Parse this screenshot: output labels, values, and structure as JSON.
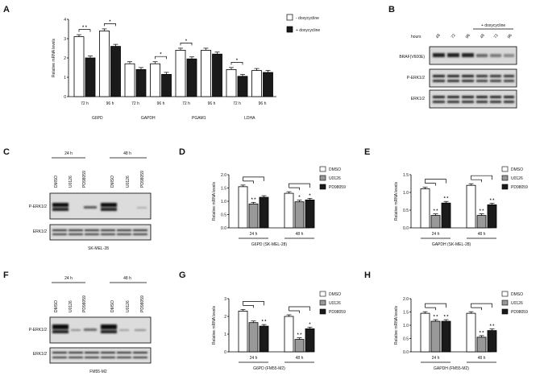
{
  "panels": {
    "A": "A",
    "B": "B",
    "C": "C",
    "D": "D",
    "E": "E",
    "F": "F",
    "G": "G",
    "H": "H"
  },
  "ylabel": "Relative mRNA levels",
  "legend_dox": {
    "minus": "- doxycycline",
    "plus": "+ doxycycline"
  },
  "legend_inh": {
    "dmso": "DMSO",
    "u0126": "U0126",
    "pd": "PD98059"
  },
  "colors": {
    "white": "#ffffff",
    "gray": "#999999",
    "black": "#1a1a1a"
  },
  "chart_data": [
    {
      "panel": "A",
      "type": "bar",
      "title": "",
      "ylabel": "Relative mRNA levels",
      "ylim": [
        0,
        4
      ],
      "yticks": [
        "0",
        "1",
        "2",
        "3",
        "4"
      ],
      "groups": [
        {
          "gene": "G6PD",
          "time": "72 h",
          "values": [
            3.1,
            2.0
          ],
          "sig": "* *"
        },
        {
          "gene": "G6PD",
          "time": "96 h",
          "values": [
            3.4,
            2.6
          ],
          "sig": "*"
        },
        {
          "gene": "GAPDH",
          "time": "72 h",
          "values": [
            1.7,
            1.4
          ],
          "sig": ""
        },
        {
          "gene": "GAPDH",
          "time": "96 h",
          "values": [
            1.7,
            1.15
          ],
          "sig": "*"
        },
        {
          "gene": "PGAM1",
          "time": "72 h",
          "values": [
            2.4,
            1.95
          ],
          "sig": "*"
        },
        {
          "gene": "PGAM1",
          "time": "96 h",
          "values": [
            2.4,
            2.2
          ],
          "sig": ""
        },
        {
          "gene": "LDHA",
          "time": "72 h",
          "values": [
            1.4,
            1.05
          ],
          "sig": "*"
        },
        {
          "gene": "LDHA",
          "time": "96 h",
          "values": [
            1.35,
            1.25
          ],
          "sig": ""
        }
      ],
      "series": [
        {
          "name": "- doxycycline"
        },
        {
          "name": "+ doxycycline"
        }
      ],
      "gene_labels": [
        "G6PD",
        "GAPDH",
        "PGAM1",
        "LDHA"
      ]
    },
    {
      "panel": "D",
      "type": "bar",
      "xlabel": "G6PD (SK-MEL-28)",
      "ylim": [
        0,
        2.0
      ],
      "yticks": [
        "0.0",
        "0.5",
        "1.0",
        "1.5",
        "2.0"
      ],
      "categories": [
        "24 h",
        "48 h"
      ],
      "series": [
        {
          "name": "DMSO",
          "values": [
            1.55,
            1.3
          ]
        },
        {
          "name": "U0126",
          "values": [
            0.9,
            0.98
          ]
        },
        {
          "name": "PD98059",
          "values": [
            1.15,
            1.05
          ]
        }
      ],
      "sig": [
        [
          "",
          "* *",
          ""
        ],
        [
          "",
          "*",
          "*"
        ]
      ]
    },
    {
      "panel": "E",
      "type": "bar",
      "xlabel": "GAPDH (SK-MEL-28)",
      "ylim": [
        0,
        1.5
      ],
      "yticks": [
        "0.0",
        "0.5",
        "1.0",
        "1.5"
      ],
      "categories": [
        "24 h",
        "48 h"
      ],
      "series": [
        {
          "name": "DMSO",
          "values": [
            1.1,
            1.2
          ]
        },
        {
          "name": "U0126",
          "values": [
            0.35,
            0.35
          ]
        },
        {
          "name": "PD98059",
          "values": [
            0.7,
            0.65
          ]
        }
      ],
      "sig": [
        [
          "",
          "* *",
          "* *"
        ],
        [
          "",
          "* *",
          "* *"
        ]
      ]
    },
    {
      "panel": "G",
      "type": "bar",
      "xlabel": "G6PD (FM55-M2)",
      "ylim": [
        0,
        3
      ],
      "yticks": [
        "0",
        "1",
        "2",
        "3"
      ],
      "categories": [
        "24 h",
        "48 h"
      ],
      "series": [
        {
          "name": "DMSO",
          "values": [
            2.3,
            2.0
          ]
        },
        {
          "name": "U0126",
          "values": [
            1.65,
            0.7
          ]
        },
        {
          "name": "PD98059",
          "values": [
            1.45,
            1.3
          ]
        }
      ],
      "sig": [
        [
          "",
          "",
          "* *"
        ],
        [
          "",
          "* *",
          "*"
        ]
      ]
    },
    {
      "panel": "H",
      "type": "bar",
      "xlabel": "GAPDH (FM55-M2)",
      "ylim": [
        0,
        2.0
      ],
      "yticks": [
        "0.0",
        "0.5",
        "1.0",
        "1.5",
        "2.0"
      ],
      "categories": [
        "24 h",
        "48 h"
      ],
      "series": [
        {
          "name": "DMSO",
          "values": [
            1.45,
            1.45
          ]
        },
        {
          "name": "U0126",
          "values": [
            1.15,
            0.55
          ]
        },
        {
          "name": "PD98059",
          "values": [
            1.15,
            0.8
          ]
        }
      ],
      "sig": [
        [
          "",
          "* *",
          "* *"
        ],
        [
          "",
          "* *",
          "* *"
        ]
      ]
    }
  ],
  "blot_B": {
    "hours_label": "hours",
    "dox_label": "+ doxycycline",
    "lanes": [
      "48",
      "72",
      "96",
      "48",
      "72",
      "96"
    ],
    "rows": [
      "BRAF(V600E)",
      "P-ERK1/2",
      "ERK1/2"
    ]
  },
  "blot_C": {
    "times": [
      "24 h",
      "48 h"
    ],
    "lanes": [
      "DMSO",
      "U0126",
      "PD98059",
      "DMSO",
      "U0126",
      "PD98059"
    ],
    "rows": [
      "P-ERK1/2",
      "ERK1/2"
    ],
    "cell_line": "SK-MEL-28"
  },
  "blot_F": {
    "times": [
      "24 h",
      "48 h"
    ],
    "lanes": [
      "DMSO",
      "U0126",
      "PD98059",
      "DMSO",
      "U0126",
      "PD98059"
    ],
    "rows": [
      "P-ERK1/2",
      "ERK1/2"
    ],
    "cell_line": "FM55-M2"
  }
}
